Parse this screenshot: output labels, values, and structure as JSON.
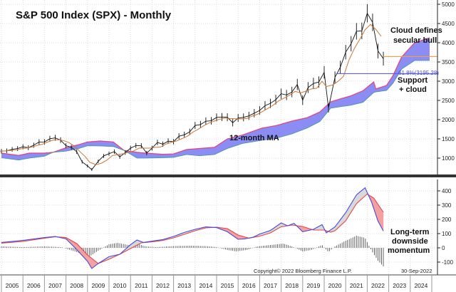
{
  "colors": {
    "price": "#111111",
    "ma": "#c8783a",
    "cloud_fill": "#8c8cf5",
    "cloud_top_edge": "#e0457a",
    "cloud_bottom_edge": "#3c9a9a",
    "macd": "#4848e0",
    "signal": "#e04848",
    "macd_above_fill": "#d8d8d8",
    "signal_above_fill": "#f5a0a0",
    "histogram": "#555555",
    "support_line": "#6060e0",
    "close_line": "#f0a040"
  },
  "chart_data": [
    {
      "type": "line",
      "title": "S&P 500 Index (SPX) - Monthly",
      "x_label": "",
      "y_label": "",
      "x_range": [
        2005,
        2025
      ],
      "ylim": [
        600,
        5050
      ],
      "y_ticks": [
        "1000",
        "1500",
        "2000",
        "2500",
        "3000",
        "3500",
        "4000",
        "4500",
        "5000"
      ],
      "grid": true,
      "x_ticks": [
        "2005",
        "2006",
        "2007",
        "2008",
        "2009",
        "2010",
        "2011",
        "2012",
        "2013",
        "2014",
        "2015",
        "2016",
        "2017",
        "2018",
        "2019",
        "2020",
        "2021",
        "2022",
        "2023",
        "2024"
      ],
      "price": {
        "x": [
          2005.0,
          2005.25,
          2005.5,
          2005.75,
          2006.0,
          2006.25,
          2006.5,
          2006.75,
          2007.0,
          2007.25,
          2007.5,
          2007.75,
          2008.0,
          2008.25,
          2008.5,
          2008.75,
          2009.0,
          2009.2,
          2009.5,
          2009.75,
          2010.0,
          2010.25,
          2010.5,
          2010.75,
          2011.0,
          2011.25,
          2011.5,
          2011.75,
          2012.0,
          2012.25,
          2012.5,
          2012.75,
          2013.0,
          2013.25,
          2013.5,
          2013.75,
          2014.0,
          2014.25,
          2014.5,
          2014.75,
          2015.0,
          2015.25,
          2015.5,
          2015.75,
          2016.0,
          2016.25,
          2016.5,
          2016.75,
          2017.0,
          2017.25,
          2017.5,
          2017.75,
          2018.0,
          2018.25,
          2018.5,
          2018.75,
          2019.0,
          2019.25,
          2019.5,
          2019.75,
          2020.0,
          2020.2,
          2020.5,
          2020.75,
          2021.0,
          2021.25,
          2021.5,
          2021.75,
          2022.0,
          2022.25,
          2022.5,
          2022.75
        ],
        "close": [
          1180,
          1191,
          1228,
          1248,
          1294,
          1270,
          1335,
          1418,
          1420,
          1503,
          1527,
          1468,
          1322,
          1280,
          1166,
          903,
          797,
          700,
          919,
          1057,
          1115,
          1169,
          1031,
          1141,
          1258,
          1326,
          1321,
          1131,
          1258,
          1408,
          1362,
          1441,
          1426,
          1569,
          1606,
          1682,
          1848,
          1872,
          1960,
          1972,
          2059,
          2068,
          2063,
          1920,
          2044,
          2060,
          2099,
          2168,
          2239,
          2363,
          2423,
          2519,
          2674,
          2641,
          2718,
          2914,
          2507,
          2834,
          2942,
          2977,
          3231,
          2300,
          3100,
          3363,
          3756,
          3973,
          4298,
          4308,
          4766,
          4530,
          3785,
          3586
        ]
      },
      "moving_average": {
        "label": "12-month MA"
      },
      "cloud": {
        "x": [
          2005.0,
          2005.8,
          2006.3,
          2007.0,
          2007.4,
          2008.0,
          2008.6,
          2009.0,
          2009.6,
          2010.2,
          2010.7,
          2011.3,
          2011.7,
          2012.5,
          2013.0,
          2013.6,
          2014.2,
          2014.9,
          2015.5,
          2016.2,
          2017.1,
          2017.8,
          2018.5,
          2019.2,
          2019.8,
          2020.3,
          2020.8,
          2021.2,
          2021.8,
          2022.3,
          2022.4,
          2022.9,
          2023.2,
          2023.6,
          2024.2,
          2024.9
        ],
        "upper": [
          1130,
          1070,
          1130,
          1130,
          1150,
          1270,
          1350,
          1420,
          1444,
          1420,
          1200,
          1150,
          1130,
          1100,
          1110,
          1222,
          1250,
          1280,
          1500,
          1600,
          1778,
          1850,
          1963,
          2050,
          2200,
          2463,
          2550,
          2611,
          2750,
          2981,
          2800,
          2889,
          3150,
          3630,
          4000,
          4130
        ],
        "lower": [
          1010,
          950,
          1000,
          1050,
          1150,
          1180,
          1250,
          1320,
          1315,
          1300,
          1200,
          1000,
          1000,
          1010,
          1020,
          1093,
          1060,
          1093,
          1250,
          1380,
          1463,
          1520,
          1630,
          1780,
          1950,
          2296,
          2340,
          2370,
          2450,
          2704,
          2720,
          2759,
          2950,
          3315,
          3537,
          3537
        ]
      },
      "annotations": {
        "ma_label": "12-month MA",
        "cloud_note": [
          "Cloud defines",
          "secular bull"
        ],
        "fib_label": "61.8%(3195.28)",
        "fib_level": 3195.28,
        "last_close_level": 3640,
        "support_note": [
          "Support",
          "+ cloud"
        ]
      }
    },
    {
      "type": "line",
      "x_range": [
        2005,
        2025
      ],
      "ylim": [
        -175,
        470
      ],
      "y_ticks": [
        "-100",
        "0",
        "100",
        "200",
        "300",
        "400"
      ],
      "grid": true,
      "macd": {
        "x": [
          2005.0,
          2006.0,
          2007.0,
          2007.5,
          2008.0,
          2008.5,
          2009.0,
          2009.2,
          2009.5,
          2010.0,
          2010.5,
          2011.0,
          2011.3,
          2011.6,
          2012.0,
          2012.5,
          2013.0,
          2013.5,
          2014.0,
          2014.5,
          2015.0,
          2015.5,
          2016.0,
          2016.3,
          2016.7,
          2017.0,
          2017.5,
          2018.0,
          2018.3,
          2018.6,
          2019.0,
          2019.5,
          2019.9,
          2020.1,
          2020.5,
          2021.0,
          2021.5,
          2021.9,
          2022.2,
          2022.5,
          2022.75
        ],
        "values": [
          38,
          52,
          72,
          80,
          63,
          -12,
          -95,
          -145,
          -110,
          -62,
          -45,
          22,
          55,
          38,
          47,
          58,
          80,
          108,
          130,
          147,
          142,
          113,
          60,
          63,
          75,
          97,
          122,
          175,
          155,
          172,
          113,
          130,
          163,
          105,
          147,
          247,
          372,
          422,
          322,
          188,
          118
        ]
      },
      "signal": {
        "x": [
          2005.0,
          2006.0,
          2007.0,
          2007.5,
          2008.0,
          2008.5,
          2009.0,
          2009.5,
          2010.0,
          2010.5,
          2011.0,
          2011.5,
          2012.0,
          2012.5,
          2013.0,
          2013.5,
          2014.0,
          2014.5,
          2015.0,
          2015.5,
          2016.0,
          2016.5,
          2017.0,
          2017.5,
          2018.0,
          2018.5,
          2019.0,
          2019.5,
          2020.0,
          2020.3,
          2020.5,
          2021.0,
          2021.5,
          2022.0,
          2022.3,
          2022.75
        ],
        "values": [
          33,
          45,
          68,
          78,
          72,
          30,
          -50,
          -110,
          -80,
          -45,
          -5,
          35,
          42,
          52,
          70,
          95,
          120,
          140,
          145,
          135,
          90,
          68,
          82,
          105,
          148,
          160,
          150,
          125,
          125,
          110,
          120,
          190,
          310,
          378,
          350,
          250
        ]
      },
      "histogram": {
        "x": [
          2005.0,
          2006.0,
          2007.0,
          2007.8,
          2008.3,
          2008.7,
          2009.1,
          2009.5,
          2010.0,
          2010.4,
          2010.9,
          2011.3,
          2011.7,
          2012.2,
          2013.0,
          2013.8,
          2014.5,
          2015.0,
          2015.5,
          2015.9,
          2016.4,
          2016.9,
          2017.5,
          2018.1,
          2018.5,
          2019.0,
          2019.4,
          2019.9,
          2020.2,
          2020.5,
          2021.0,
          2021.5,
          2021.9,
          2022.2,
          2022.5,
          2022.75
        ],
        "values": [
          10,
          5,
          10,
          5,
          -20,
          -40,
          -60,
          -20,
          25,
          35,
          20,
          30,
          10,
          5,
          12,
          15,
          12,
          5,
          -15,
          -25,
          -15,
          10,
          20,
          30,
          10,
          -25,
          -15,
          20,
          -30,
          10,
          50,
          85,
          70,
          -20,
          -90,
          -130
        ]
      },
      "annotations": {
        "momentum_note": [
          "Long-term",
          "downside",
          "momentum"
        ],
        "copyright": "Copyright© 2022 Bloomberg Finance L.P.",
        "date": "30-Sep-2022"
      }
    }
  ]
}
